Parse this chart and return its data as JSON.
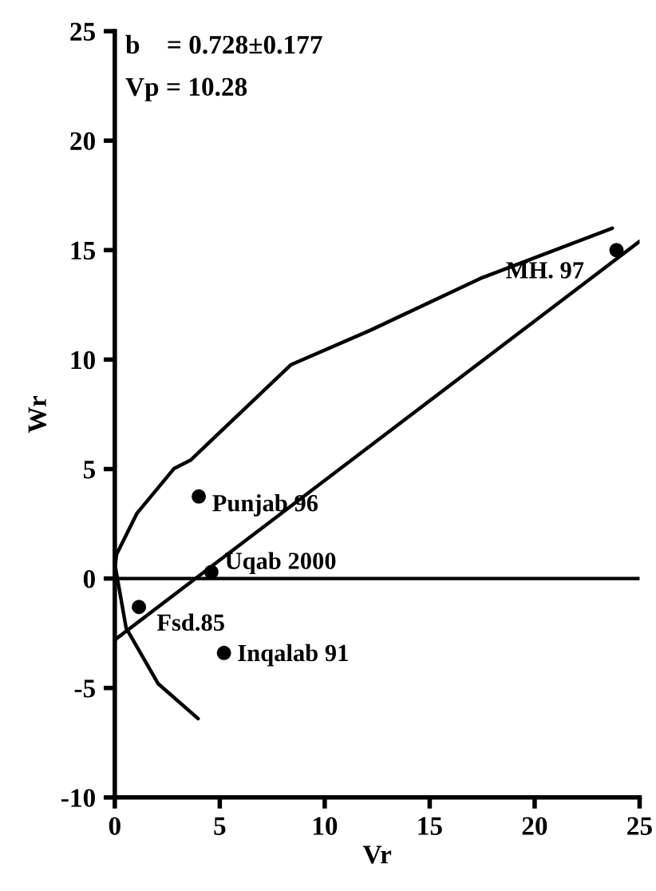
{
  "chart_data": {
    "type": "scatter",
    "xlabel": "Vr",
    "ylabel": "Wr",
    "xlim": [
      0,
      25
    ],
    "ylim": [
      -10,
      25
    ],
    "xticks": [
      0,
      5,
      10,
      15,
      20,
      25
    ],
    "yticks": [
      -10,
      -5,
      0,
      5,
      10,
      15,
      20,
      25
    ],
    "grid": false,
    "legend": false,
    "marker": "circle",
    "series": [
      {
        "color": "#000000",
        "x": [
          23.9,
          4.0,
          4.6,
          1.15,
          5.2
        ],
        "values": [
          15.0,
          3.75,
          0.3,
          -1.3,
          -3.4
        ]
      },
      {
        "type": "line",
        "marker": "none",
        "color": "#000000",
        "x": [
          0,
          25
        ],
        "values": [
          -2.8,
          15.4
        ]
      },
      {
        "type": "line",
        "marker": "none",
        "color": "#000000",
        "x": [
          23.7,
          17.4,
          12.2,
          8.4,
          3.6,
          2.83,
          1.05,
          0.08,
          0.02,
          0.54,
          2.06,
          3.97
        ],
        "values": [
          16.0,
          13.7,
          11.35,
          9.77,
          5.4,
          5.03,
          2.97,
          1.1,
          0.56,
          -2.26,
          -4.8,
          -6.4
        ]
      }
    ],
    "ref_lines": [
      {
        "axis": "y",
        "value": 0,
        "color": "#000000"
      }
    ],
    "annotations": [
      "b    = 0.728±0.177",
      "Vp = 10.28",
      {
        "text": "MH. 97",
        "x": 23.9,
        "y": 15.0
      },
      {
        "text": "Punjab 96",
        "x": 4.0,
        "y": 3.75
      },
      {
        "text": "Uqab 2000",
        "x": 4.6,
        "y": 0.3
      },
      {
        "text": "Fsd.85",
        "x": 1.15,
        "y": -1.3
      },
      {
        "text": "Inqalab 91",
        "x": 5.2,
        "y": -3.4
      }
    ]
  }
}
